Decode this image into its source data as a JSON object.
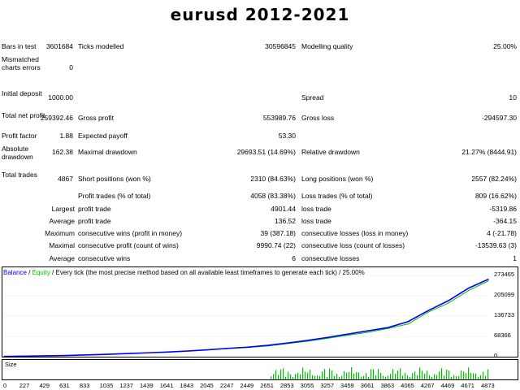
{
  "title": "eurusd 2012-2021",
  "stats": {
    "bars_label": "Bars in test",
    "bars_value": "3601684",
    "ticks_label": "Ticks modelled",
    "ticks_value": "30596845",
    "quality_label": "Modelling quality",
    "quality_value": "25.00%",
    "mismatch_label": "Mismatched charts errors",
    "mismatch_value": "0",
    "deposit_label": "Initial deposit",
    "deposit_value": "1000.00",
    "spread_label": "Spread",
    "spread_value": "10",
    "net_label": "Total net profit",
    "net_value": "259392.46",
    "gross_profit_label": "Gross profit",
    "gross_profit_value": "553989.76",
    "gross_loss_label": "Gross loss",
    "gross_loss_value": "-294597.30",
    "pf_label": "Profit factor",
    "pf_value": "1.88",
    "payoff_label": "Expected payoff",
    "payoff_value": "53.30",
    "abs_dd_label": "Absolute drawdown",
    "abs_dd_value": "162.38",
    "max_dd_label": "Maximal drawdown",
    "max_dd_value": "29693.51 (14.69%)",
    "rel_dd_label": "Relative drawdown",
    "rel_dd_value": "21.27% (8444.91)",
    "trades_label": "Total trades",
    "trades_value": "4867",
    "short_label": "Short positions (won %)",
    "short_value": "2310 (84.63%)",
    "long_label": "Long positions (won %)",
    "long_value": "2557 (82.24%)",
    "pt_label": "Profit trades (% of total)",
    "pt_value": "4058 (83.38%)",
    "lt_label": "Loss trades (% of total)",
    "lt_value": "809 (16.62%)",
    "largest_q": "Largest",
    "largest_pt_label": "profit trade",
    "largest_pt_value": "4901.44",
    "largest_lt_label": "loss trade",
    "largest_lt_value": "-5319.86",
    "average_q": "Average",
    "avg_pt_label": "profit trade",
    "avg_pt_value": "136.52",
    "avg_lt_label": "loss trade",
    "avg_lt_value": "-364.15",
    "maximum_q": "Maximum",
    "max_cw_label": "consecutive wins (profit in money)",
    "max_cw_value": "39 (387.18)",
    "max_cl_label": "consecutive losses (loss in money)",
    "max_cl_value": "4 (-21.78)",
    "maximal_q": "Maximal",
    "mx_cp_label": "consecutive profit (count of wins)",
    "mx_cp_value": "9990.74 (22)",
    "mx_cl_label": "consecutive loss (count of losses)",
    "mx_cl_value": "-13539.63 (3)",
    "average2_q": "Average",
    "av_cw_label": "consecutive wins",
    "av_cw_value": "6",
    "av_cl_label": "consecutive losses",
    "av_cl_value": "1"
  },
  "chart_legend": {
    "balance": "Balance",
    "sep1": " / ",
    "equity": "Equity",
    "rest": " / Every tick (the most precise method based on all available least timeframes to generate each tick) / 25.00%"
  },
  "size_label": "Size",
  "colors": {
    "balance": "#0000ff",
    "equity": "#00c000",
    "volume": "#00c000"
  },
  "chart_data": {
    "type": "line",
    "x": [
      0,
      227,
      429,
      631,
      833,
      1035,
      1237,
      1439,
      1641,
      1843,
      2045,
      2247,
      2449,
      2651,
      2853,
      3055,
      3257,
      3459,
      3661,
      3863,
      4065,
      4267,
      4469,
      4671,
      4873
    ],
    "y_ticks": [
      0,
      68366,
      136733,
      205099,
      273465
    ],
    "ylim": [
      0,
      273465
    ],
    "series": [
      {
        "name": "Balance",
        "values": [
          1000,
          2000,
          3000,
          4000,
          6000,
          8000,
          10500,
          13000,
          15500,
          19000,
          23000,
          28000,
          32000,
          38000,
          46000,
          55000,
          65000,
          76000,
          87000,
          98000,
          118000,
          155000,
          188000,
          230000,
          260392
        ]
      },
      {
        "name": "Equity",
        "values": [
          1000,
          2000,
          3000,
          4000,
          6000,
          8000,
          10500,
          13000,
          15500,
          19000,
          23000,
          27000,
          31000,
          36000,
          44000,
          52000,
          62000,
          72000,
          82000,
          95000,
          110000,
          150000,
          180000,
          222000,
          255000
        ]
      }
    ]
  }
}
